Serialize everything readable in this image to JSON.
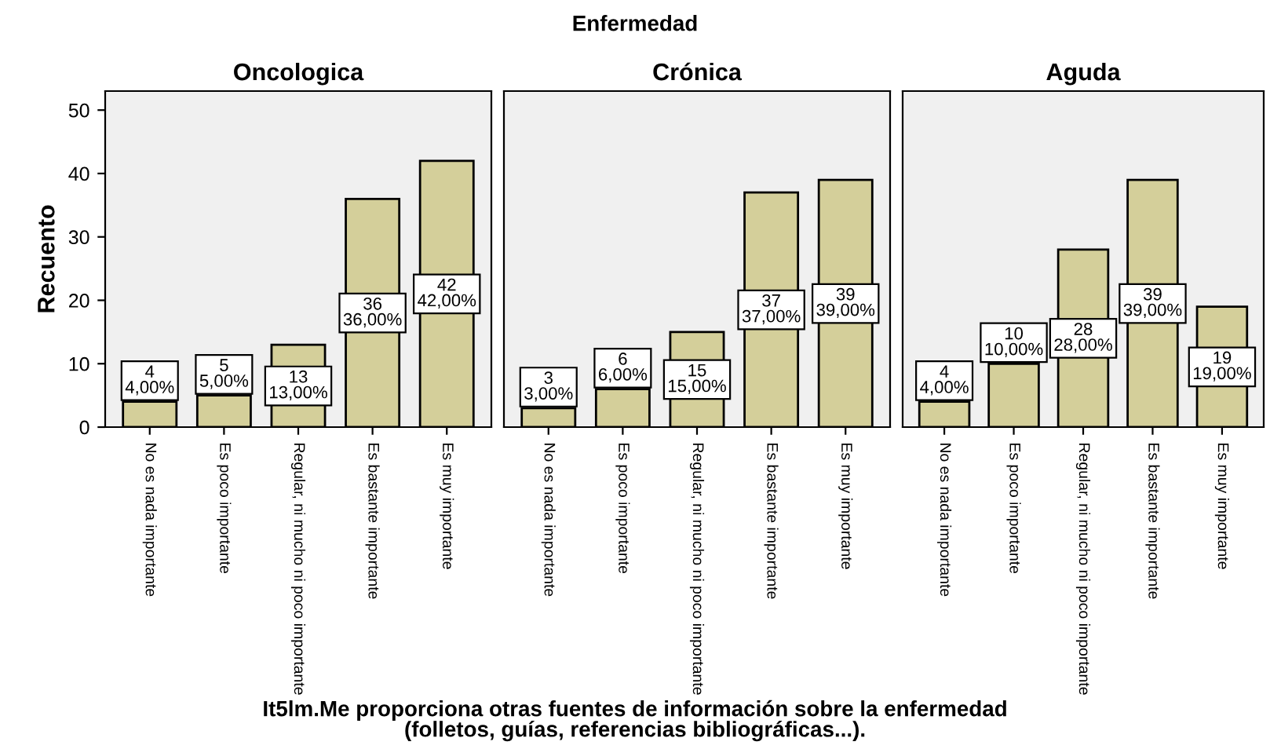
{
  "chart_data": [
    {
      "type": "bar",
      "title": "Oncologica",
      "ylabel": "Recuento",
      "categories": [
        "No es nada importante",
        "Es poco importante",
        "Regular, ni mucho ni poco importante",
        "Es bastante importante",
        "Es muy importante"
      ],
      "values": [
        4,
        5,
        13,
        36,
        42
      ],
      "value_labels": [
        "4\n4,00%",
        "5\n5,00%",
        "13\n13,00%",
        "36\n36,00%",
        "42\n42,00%"
      ],
      "color": "#d4cf9a",
      "ylim": [
        0,
        53
      ],
      "yticks": [
        0,
        10,
        20,
        30,
        40,
        50
      ],
      "grid": false,
      "legend": false
    },
    {
      "type": "bar",
      "title": "Crónica",
      "xlabel": "It5lm.Me proporciona otras fuentes de información sobre la enfermedad\n(folletos, guías, referencias bibliográficas...).",
      "annotations": [
        "Enfermedad"
      ],
      "categories": [
        "No es nada importante",
        "Es poco importante",
        "Regular, ni mucho ni poco importante",
        "Es bastante importante",
        "Es muy importante"
      ],
      "values": [
        3,
        6,
        15,
        37,
        39
      ],
      "value_labels": [
        "3\n3,00%",
        "6\n6,00%",
        "15\n15,00%",
        "37\n37,00%",
        "39\n39,00%"
      ],
      "color": "#d4cf9a",
      "ylim": [
        0,
        53
      ],
      "yticks": [
        0,
        10,
        20,
        30,
        40,
        50
      ],
      "tick_labels": "x",
      "grid": false,
      "legend": false
    },
    {
      "type": "bar",
      "title": "Aguda",
      "categories": [
        "No es nada importante",
        "Es poco importante",
        "Regular, ni mucho ni poco importante",
        "Es bastante importante",
        "Es muy importante"
      ],
      "values": [
        4,
        10,
        28,
        39,
        19
      ],
      "value_labels": [
        "4\n4,00%",
        "10\n10,00%",
        "28\n28,00%",
        "39\n39,00%",
        "19\n19,00%"
      ],
      "color": "#d4cf9a",
      "ylim": [
        0,
        53
      ],
      "yticks": [
        0,
        10,
        20,
        30,
        40,
        50
      ],
      "tick_labels": "x",
      "grid": false,
      "legend": false
    }
  ]
}
